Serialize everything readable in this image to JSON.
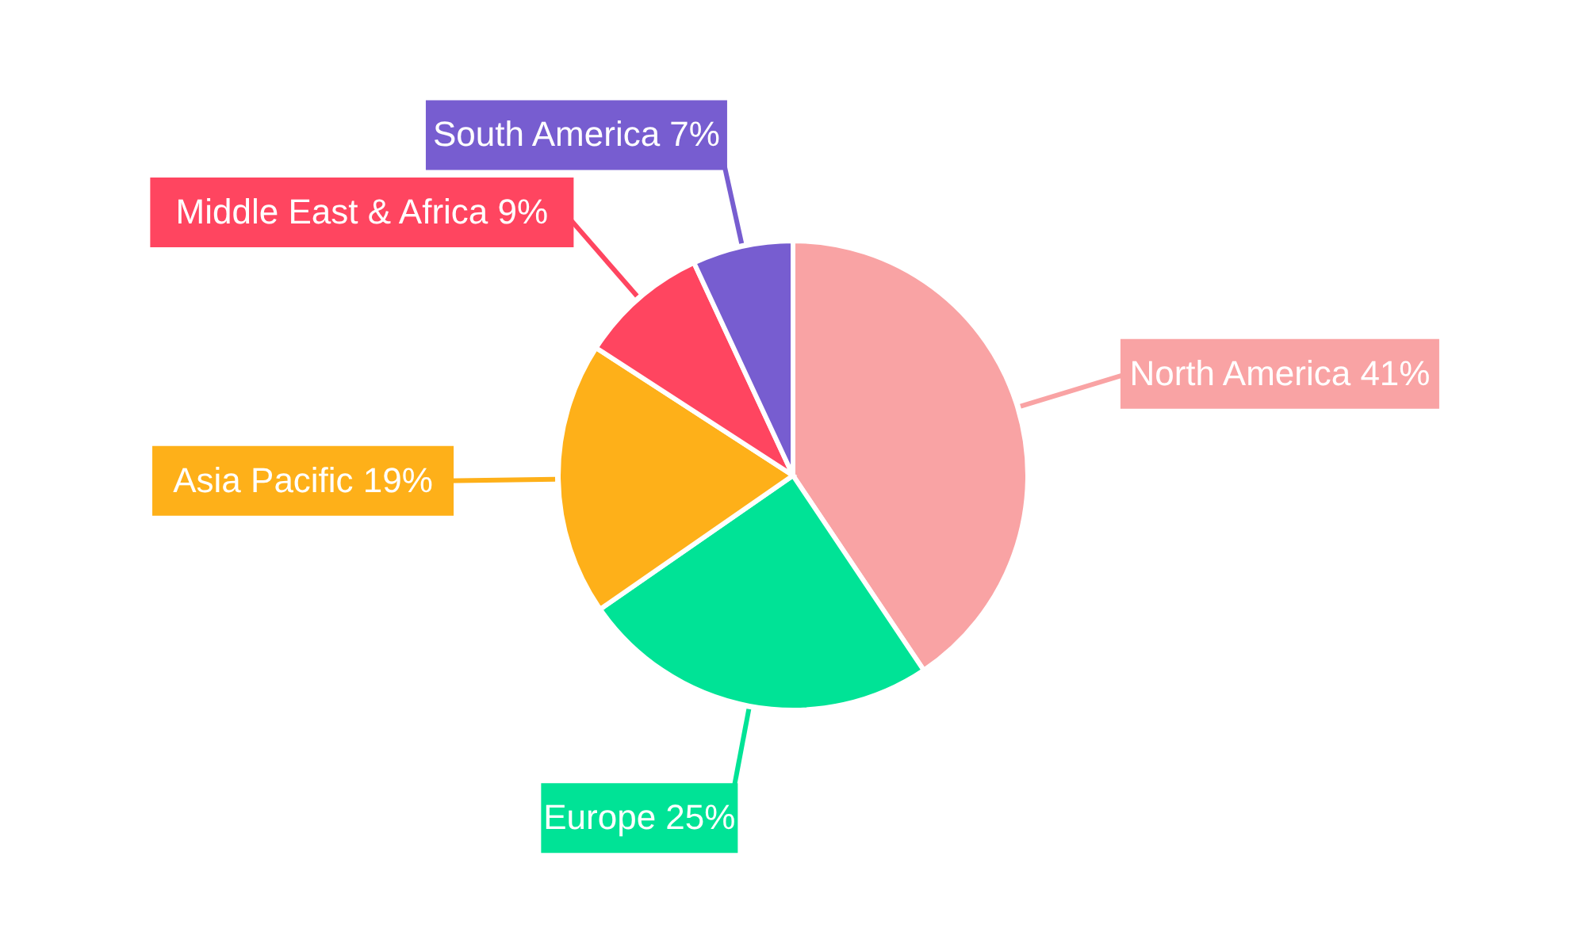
{
  "chart_data": {
    "type": "pie",
    "categories": [
      "North America",
      "Europe",
      "Asia Pacific",
      "Middle East & Africa",
      "South America"
    ],
    "values": [
      41,
      25,
      19,
      9,
      7
    ],
    "value_labels": [
      "41%",
      "25%",
      "19%",
      "9%",
      "7%"
    ],
    "colors": [
      "#f9a3a4",
      "#00e396",
      "#feb019",
      "#ff4560",
      "#775dd0"
    ]
  }
}
